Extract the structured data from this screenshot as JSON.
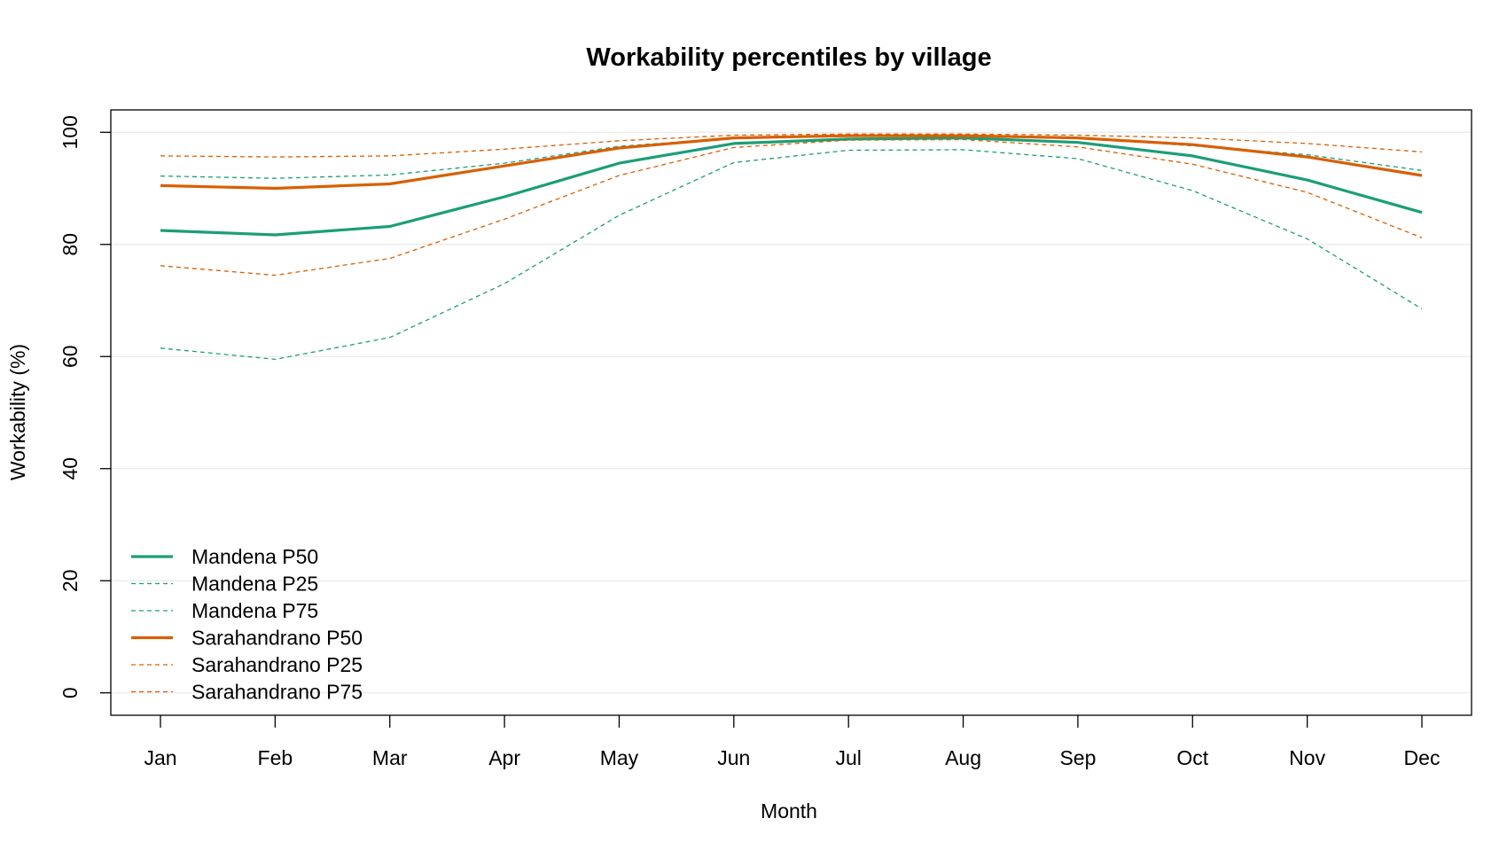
{
  "chart_data": {
    "type": "line",
    "title": "Workability percentiles by village",
    "xlabel": "Month",
    "ylabel": "Workability (%)",
    "categories": [
      "Jan",
      "Feb",
      "Mar",
      "Apr",
      "May",
      "Jun",
      "Jul",
      "Aug",
      "Sep",
      "Oct",
      "Nov",
      "Dec"
    ],
    "yticks": [
      "0",
      "20",
      "40",
      "60",
      "80",
      "100"
    ],
    "ylim": [
      -4,
      104
    ],
    "grid": "horizontal",
    "legend_position": "bottom-left",
    "series": [
      {
        "name": "Mandena P50",
        "color": "#1b9e77",
        "style": "solid",
        "values": [
          82.5,
          81.7,
          83.2,
          88.5,
          94.5,
          98.0,
          98.8,
          99.0,
          98.2,
          95.8,
          91.5,
          85.7
        ]
      },
      {
        "name": "Mandena P25",
        "color": "#1b9e77",
        "style": "dashed",
        "values": [
          61.5,
          59.5,
          63.4,
          73.0,
          85.2,
          94.6,
          96.8,
          96.9,
          95.3,
          89.6,
          81.0,
          68.5
        ]
      },
      {
        "name": "Mandena P75",
        "color": "#1b9e77",
        "style": "dashed",
        "values": [
          92.2,
          91.8,
          92.4,
          94.5,
          97.5,
          99.0,
          99.3,
          99.3,
          99.0,
          97.6,
          96.0,
          93.2
        ]
      },
      {
        "name": "Sarahandrano P50",
        "color": "#d95f02",
        "style": "solid",
        "values": [
          90.5,
          90.0,
          90.8,
          94.0,
          97.2,
          99.0,
          99.4,
          99.4,
          99.0,
          97.8,
          95.6,
          92.3
        ]
      },
      {
        "name": "Sarahandrano P25",
        "color": "#d95f02",
        "style": "dashed",
        "values": [
          76.2,
          74.5,
          77.5,
          84.5,
          92.3,
          97.3,
          98.6,
          98.7,
          97.4,
          94.3,
          89.3,
          81.2
        ]
      },
      {
        "name": "Sarahandrano P75",
        "color": "#d95f02",
        "style": "dashed",
        "values": [
          95.8,
          95.6,
          95.8,
          97.0,
          98.5,
          99.5,
          99.7,
          99.7,
          99.5,
          99.0,
          98.0,
          96.5
        ]
      }
    ]
  }
}
